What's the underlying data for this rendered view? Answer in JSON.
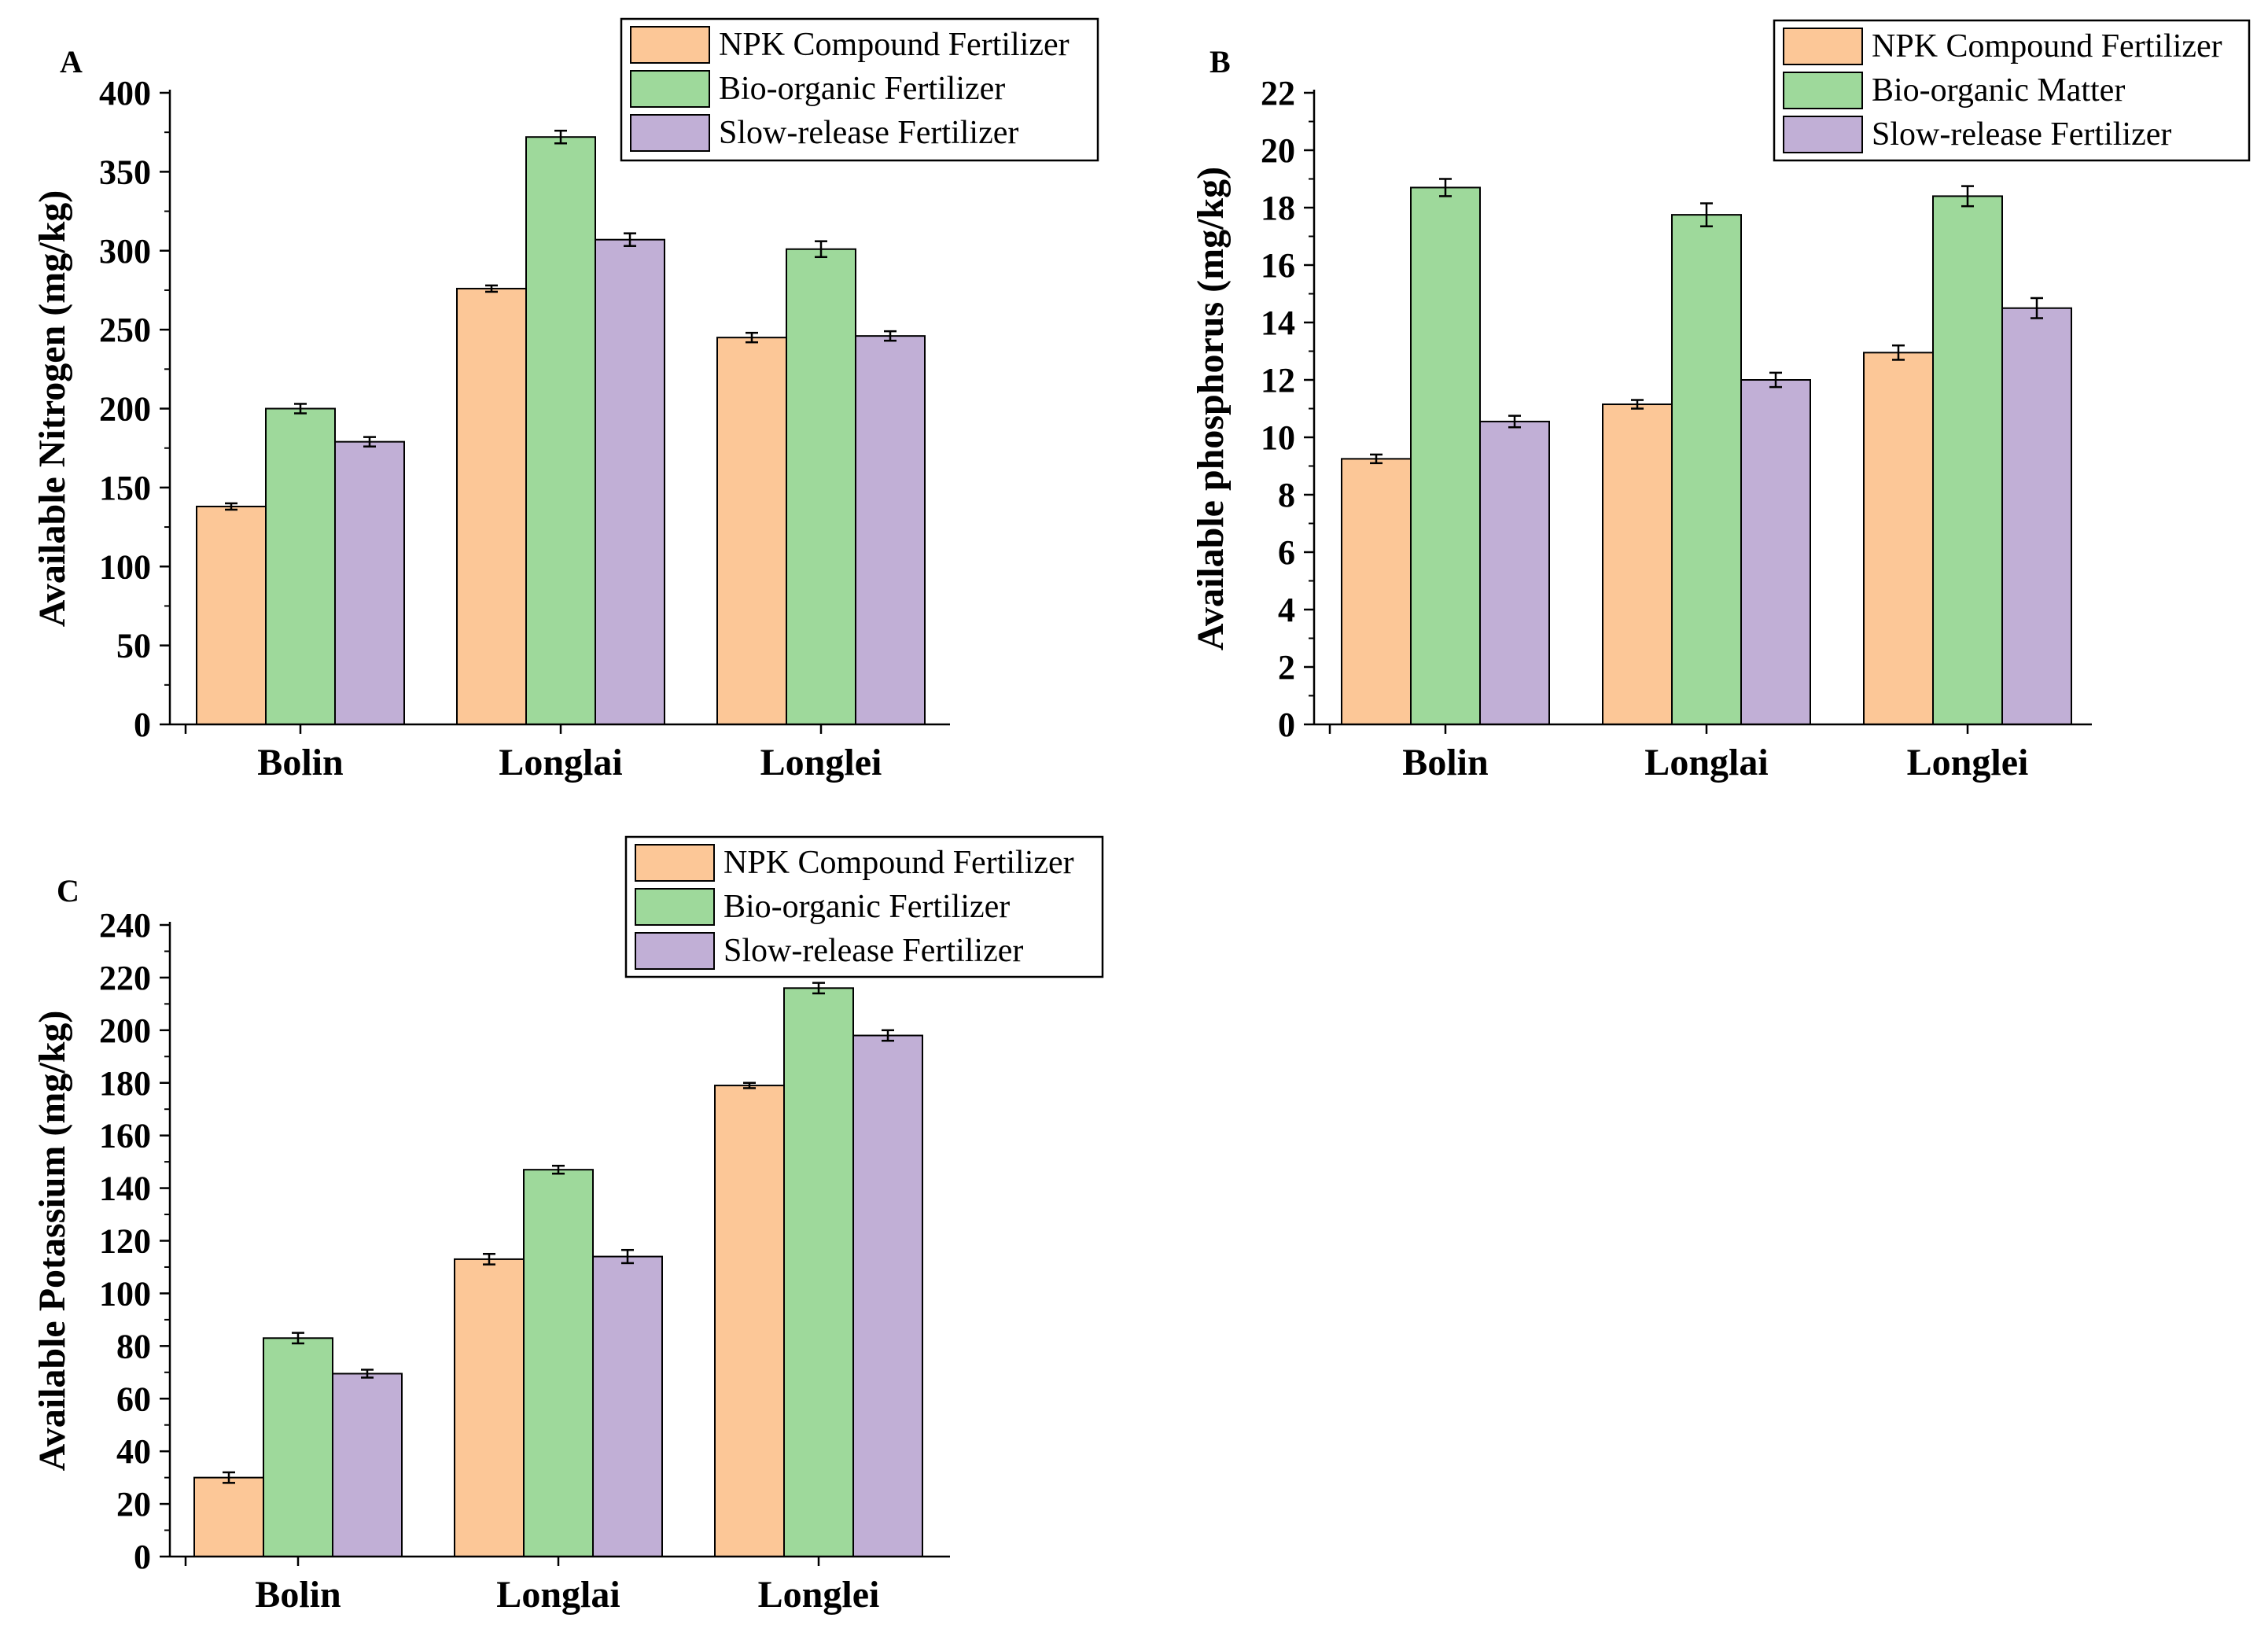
{
  "chart_data": [
    {
      "type": "bar",
      "panel": "A",
      "categories": [
        "Bolin",
        "Longlai",
        "Longlei"
      ],
      "ylabel": "Available Nitrogen (mg/kg)",
      "xlabel": "",
      "ylim": [
        0,
        400
      ],
      "yticks": [
        0,
        50,
        100,
        150,
        200,
        250,
        300,
        350,
        400
      ],
      "minor_step": 25,
      "legend_position": "top-right",
      "series": [
        {
          "name": "NPK Compound Fertilizer",
          "color": "#fcc797",
          "values": [
            138,
            276,
            245
          ],
          "errors": [
            2,
            2,
            3
          ]
        },
        {
          "name": "Bio-organic Fertilizer",
          "color": "#9ed99b",
          "values": [
            200,
            372,
            301
          ],
          "errors": [
            3,
            4,
            5
          ]
        },
        {
          "name": "Slow-release Fertilizer",
          "color": "#c1afd6",
          "values": [
            179,
            307,
            246
          ],
          "errors": [
            3,
            4,
            3
          ]
        }
      ]
    },
    {
      "type": "bar",
      "panel": "B",
      "categories": [
        "Bolin",
        "Longlai",
        "Longlei"
      ],
      "ylabel": "Available phosphorus (mg/kg)",
      "xlabel": "",
      "ylim": [
        0,
        22
      ],
      "yticks": [
        0,
        2,
        4,
        6,
        8,
        10,
        12,
        14,
        16,
        18,
        20,
        22
      ],
      "minor_step": 1,
      "legend_position": "top-right",
      "series": [
        {
          "name": "NPK Compound Fertilizer",
          "color": "#fcc797",
          "values": [
            9.25,
            11.15,
            12.95
          ],
          "errors": [
            0.15,
            0.15,
            0.25
          ]
        },
        {
          "name": "Bio-organic Matter",
          "color": "#9ed99b",
          "values": [
            18.7,
            17.75,
            18.4
          ],
          "errors": [
            0.3,
            0.4,
            0.35
          ]
        },
        {
          "name": "Slow-release Fertilizer",
          "color": "#c1afd6",
          "values": [
            10.55,
            12.0,
            14.5
          ],
          "errors": [
            0.2,
            0.25,
            0.35
          ]
        }
      ]
    },
    {
      "type": "bar",
      "panel": "C",
      "categories": [
        "Bolin",
        "Longlai",
        "Longlei"
      ],
      "ylabel": "Available Potassium (mg/kg)",
      "xlabel": "",
      "ylim": [
        0,
        240
      ],
      "yticks": [
        0,
        20,
        40,
        60,
        80,
        100,
        120,
        140,
        160,
        180,
        200,
        220,
        240
      ],
      "minor_step": 10,
      "legend_position": "top-right",
      "series": [
        {
          "name": "NPK Compound Fertilizer",
          "color": "#fcc797",
          "values": [
            30,
            113,
            179
          ],
          "errors": [
            2,
            2,
            1
          ]
        },
        {
          "name": "Bio-organic Fertilizer",
          "color": "#9ed99b",
          "values": [
            83,
            147,
            216
          ],
          "errors": [
            2,
            1.5,
            2
          ]
        },
        {
          "name": "Slow-release Fertilizer",
          "color": "#c1afd6",
          "values": [
            69.5,
            114,
            198
          ],
          "errors": [
            1.5,
            2.5,
            2
          ]
        }
      ]
    }
  ]
}
